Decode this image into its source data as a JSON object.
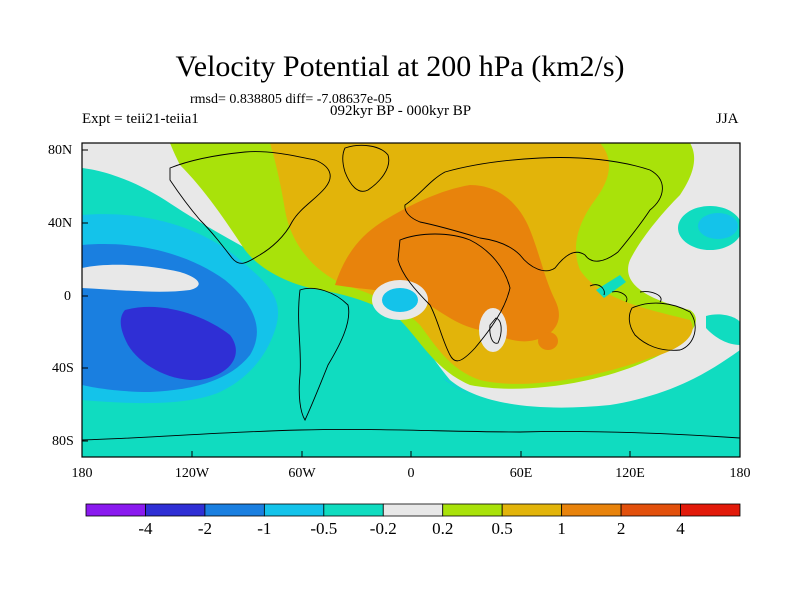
{
  "title": "Velocity Potential at 200 hPa (km2/s)",
  "stats": "rmsd= 0.838805 diff= -7.08637e-05",
  "experiment": "Expt = teii21-teiia1",
  "period": "092kyr BP - 000kyr BP",
  "season": "JJA",
  "y_axis": {
    "ticks": [
      "80N",
      "40N",
      "0",
      "40S",
      "80S"
    ]
  },
  "x_axis": {
    "ticks": [
      "180",
      "120W",
      "60W",
      "0",
      "60E",
      "120E",
      "180"
    ]
  },
  "colorbar": {
    "labels": [
      "-4",
      "-2",
      "-1",
      "-0.5",
      "-0.2",
      "0.2",
      "0.5",
      "1",
      "2",
      "4"
    ],
    "colors": [
      "#8a1aef",
      "#2f2fd5",
      "#1a7fe0",
      "#14c3ea",
      "#10dcc0",
      "#e8e8e8",
      "#a9e20a",
      "#e2b40a",
      "#e8830c",
      "#e2500c",
      "#e21a0a"
    ]
  },
  "field_colors": {
    "deep_negative": "#2f2fd5",
    "negative": "#1a7fe0",
    "moderate_negative": "#14c3ea",
    "weak_negative": "#10dcc0",
    "near_zero": "#e8e8e8",
    "weak_positive": "#a9e20a",
    "moderate_positive": "#e2b40a",
    "strong_positive": "#e8830c"
  }
}
